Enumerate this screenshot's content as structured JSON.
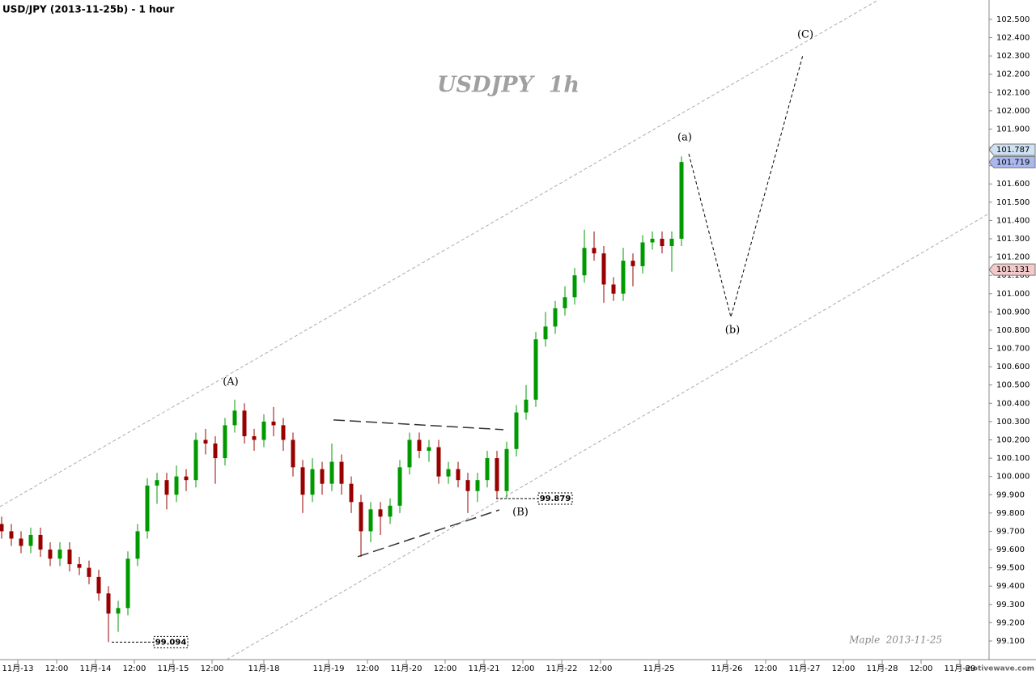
{
  "chart_data": {
    "type": "candlestick",
    "title": "USD/JPY (2013-11-25b) - 1 hour",
    "watermark": "USDJPY  1h",
    "signature": "Maple  2013-11-25",
    "brand": "motivewave.com",
    "xlim": [
      -5.5,
      299.5
    ],
    "ylim": [
      98.998,
      102.606
    ],
    "xticks": [
      {
        "value": 0,
        "label": "11月-13"
      },
      {
        "value": 12,
        "label": "12:00"
      },
      {
        "value": 24,
        "label": "11月-14"
      },
      {
        "value": 36,
        "label": "12:00"
      },
      {
        "value": 48,
        "label": "11月-15"
      },
      {
        "value": 60,
        "label": "12:00"
      },
      {
        "value": 76,
        "label": "11月-18"
      },
      {
        "value": 96,
        "label": "11月-19"
      },
      {
        "value": 108,
        "label": "12:00"
      },
      {
        "value": 120,
        "label": "11月-20"
      },
      {
        "value": 132,
        "label": "12:00"
      },
      {
        "value": 144,
        "label": "11月-21"
      },
      {
        "value": 156,
        "label": "12:00"
      },
      {
        "value": 168,
        "label": "11月-22"
      },
      {
        "value": 180,
        "label": "12:00"
      },
      {
        "value": 198,
        "label": "11月-25"
      },
      {
        "value": 219,
        "label": "11月-26"
      },
      {
        "value": 231,
        "label": "12:00"
      },
      {
        "value": 243,
        "label": "11月-27"
      },
      {
        "value": 255,
        "label": "12:00"
      },
      {
        "value": 267,
        "label": "11月-28"
      },
      {
        "value": 279,
        "label": "12:00"
      },
      {
        "value": 291,
        "label": "11月-29"
      }
    ],
    "yticks": [
      {
        "value": 99.1,
        "label": "99.100"
      },
      {
        "value": 99.2,
        "label": "99.200"
      },
      {
        "value": 99.3,
        "label": "99.300"
      },
      {
        "value": 99.4,
        "label": "99.400"
      },
      {
        "value": 99.5,
        "label": "99.500"
      },
      {
        "value": 99.6,
        "label": "99.600"
      },
      {
        "value": 99.7,
        "label": "99.700"
      },
      {
        "value": 99.8,
        "label": "99.800"
      },
      {
        "value": 99.9,
        "label": "99.900"
      },
      {
        "value": 100.0,
        "label": "100.000"
      },
      {
        "value": 100.1,
        "label": "100.100"
      },
      {
        "value": 100.2,
        "label": "100.200"
      },
      {
        "value": 100.3,
        "label": "100.300"
      },
      {
        "value": 100.4,
        "label": "100.400"
      },
      {
        "value": 100.5,
        "label": "100.500"
      },
      {
        "value": 100.6,
        "label": "100.600"
      },
      {
        "value": 100.7,
        "label": "100.700"
      },
      {
        "value": 100.8,
        "label": "100.800"
      },
      {
        "value": 100.9,
        "label": "100.900"
      },
      {
        "value": 101.0,
        "label": "101.000"
      },
      {
        "value": 101.1,
        "label": "101.100"
      },
      {
        "value": 101.2,
        "label": "101.200"
      },
      {
        "value": 101.3,
        "label": "101.300"
      },
      {
        "value": 101.4,
        "label": "101.400"
      },
      {
        "value": 101.5,
        "label": "101.500"
      },
      {
        "value": 101.6,
        "label": "101.600"
      },
      {
        "value": 101.7,
        "label": "101.700"
      },
      {
        "value": 101.8,
        "label": "101.800"
      },
      {
        "value": 101.9,
        "label": "101.900"
      },
      {
        "value": 102.0,
        "label": "102.000"
      },
      {
        "value": 102.1,
        "label": "102.100"
      },
      {
        "value": 102.2,
        "label": "102.200"
      },
      {
        "value": 102.3,
        "label": "102.300"
      },
      {
        "value": 102.4,
        "label": "102.400"
      },
      {
        "value": 102.5,
        "label": "102.500"
      }
    ],
    "up_color": "#009a00",
    "down_color": "#990000",
    "x": [
      -5,
      -2,
      1,
      4,
      7,
      10,
      13,
      16,
      19,
      22,
      25,
      28,
      31,
      34,
      37,
      40,
      43,
      46,
      49,
      52,
      55,
      58,
      61,
      64,
      67,
      70,
      73,
      76,
      79,
      82,
      85,
      88,
      91,
      94,
      97,
      100,
      103,
      106,
      109,
      112,
      115,
      118,
      121,
      124,
      127,
      130,
      133,
      136,
      139,
      142,
      145,
      148,
      151,
      154,
      157,
      160,
      163,
      166,
      169,
      172,
      175,
      178,
      181,
      184,
      187,
      190,
      193,
      196,
      199,
      202,
      205
    ],
    "open": [
      99.74,
      99.7,
      99.66,
      99.62,
      99.68,
      99.6,
      99.55,
      99.6,
      99.52,
      99.5,
      99.45,
      99.36,
      99.25,
      99.28,
      99.55,
      99.7,
      99.95,
      99.98,
      99.9,
      100.0,
      99.98,
      100.2,
      100.18,
      100.1,
      100.28,
      100.36,
      100.22,
      100.2,
      100.3,
      100.28,
      100.2,
      100.05,
      99.9,
      100.04,
      99.96,
      100.08,
      99.96,
      99.86,
      99.7,
      99.82,
      99.78,
      99.84,
      100.05,
      100.2,
      100.14,
      100.16,
      100.0,
      100.04,
      99.98,
      99.92,
      99.98,
      100.1,
      99.92,
      100.15,
      100.35,
      100.42,
      100.75,
      100.82,
      100.92,
      100.98,
      101.1,
      101.25,
      101.22,
      101.05,
      101.0,
      101.18,
      101.15,
      101.28,
      101.3,
      101.26,
      101.3
    ],
    "high": [
      99.78,
      99.74,
      99.7,
      99.72,
      99.72,
      99.64,
      99.64,
      99.64,
      99.56,
      99.54,
      99.49,
      99.4,
      99.32,
      99.59,
      99.74,
      99.99,
      100.02,
      100.02,
      100.06,
      100.04,
      100.24,
      100.26,
      100.22,
      100.32,
      100.42,
      100.4,
      100.26,
      100.34,
      100.38,
      100.32,
      100.24,
      100.09,
      100.1,
      100.08,
      100.18,
      100.12,
      100.0,
      99.9,
      99.86,
      99.86,
      99.88,
      100.09,
      100.24,
      100.24,
      100.2,
      100.2,
      100.08,
      100.08,
      100.02,
      100.02,
      100.14,
      100.14,
      100.19,
      100.39,
      100.5,
      100.79,
      100.9,
      100.96,
      101.04,
      101.14,
      101.35,
      101.34,
      101.26,
      101.09,
      101.25,
      101.22,
      101.32,
      101.34,
      101.34,
      101.34,
      101.75
    ],
    "low": [
      99.66,
      99.62,
      99.58,
      99.58,
      99.56,
      99.51,
      99.51,
      99.48,
      99.46,
      99.41,
      99.32,
      99.094,
      99.15,
      99.24,
      99.51,
      99.66,
      99.85,
      99.82,
      99.86,
      99.92,
      99.94,
      100.12,
      99.96,
      100.06,
      100.24,
      100.18,
      100.14,
      100.16,
      100.22,
      100.14,
      100.0,
      99.8,
      99.86,
      99.9,
      99.92,
      99.9,
      99.8,
      99.56,
      99.64,
      99.68,
      99.74,
      99.8,
      100.01,
      100.1,
      100.08,
      99.96,
      99.96,
      99.94,
      99.8,
      99.86,
      99.94,
      99.879,
      99.88,
      100.11,
      100.31,
      100.38,
      100.71,
      100.78,
      100.88,
      100.94,
      101.06,
      101.18,
      100.95,
      100.96,
      100.96,
      101.04,
      101.11,
      101.24,
      101.22,
      101.12,
      101.26
    ],
    "close": [
      99.7,
      99.66,
      99.62,
      99.68,
      99.6,
      99.55,
      99.6,
      99.52,
      99.5,
      99.45,
      99.36,
      99.25,
      99.28,
      99.55,
      99.7,
      99.95,
      99.98,
      99.9,
      100.0,
      99.98,
      100.2,
      100.18,
      100.1,
      100.28,
      100.36,
      100.22,
      100.2,
      100.3,
      100.28,
      100.2,
      100.05,
      99.9,
      100.04,
      99.96,
      100.08,
      99.96,
      99.86,
      99.7,
      99.82,
      99.78,
      99.84,
      100.05,
      100.2,
      100.14,
      100.16,
      100.0,
      100.04,
      99.98,
      99.92,
      99.98,
      100.1,
      99.92,
      100.15,
      100.35,
      100.42,
      100.75,
      100.82,
      100.92,
      100.98,
      101.1,
      101.25,
      101.22,
      101.05,
      101.0,
      101.18,
      101.15,
      101.28,
      101.3,
      101.26,
      101.3,
      101.72
    ],
    "channel": [
      {
        "x": [
          -5.5,
          265.75
        ],
        "y": [
          99.835,
          102.606
        ]
      },
      {
        "x": [
          64.5,
          299.5
        ],
        "y": [
          98.998,
          101.433
        ]
      }
    ],
    "triangle": [
      {
        "x": [
          97.5,
          150
        ],
        "y": [
          100.309,
          100.256
        ]
      },
      {
        "x": [
          105,
          148.75
        ],
        "y": [
          99.561,
          99.817
        ]
      }
    ],
    "projection": {
      "x": [
        207.25,
        220.25,
        242.5
      ],
      "y": [
        101.765,
        100.871,
        102.305
      ]
    },
    "wave_labels": [
      {
        "text": "(A)",
        "x": 65.75,
        "y": 100.517
      },
      {
        "text": "(B)",
        "x": 155.25,
        "y": 99.804
      },
      {
        "text": "(a)",
        "x": 206,
        "y": 101.854
      },
      {
        "text": "(b)",
        "x": 220.75,
        "y": 100.8
      },
      {
        "text": "(C)",
        "x": 243.25,
        "y": 102.416
      }
    ],
    "level_labels": [
      {
        "value": 99.094,
        "x": 29
      },
      {
        "value": 99.879,
        "x": 147.75
      }
    ],
    "price_tags": [
      {
        "value": 101.787,
        "color": "#cfe2f3"
      },
      {
        "value": 101.719,
        "color": "#aab8ee"
      },
      {
        "value": 101.131,
        "color": "#f3c9c9"
      }
    ]
  }
}
